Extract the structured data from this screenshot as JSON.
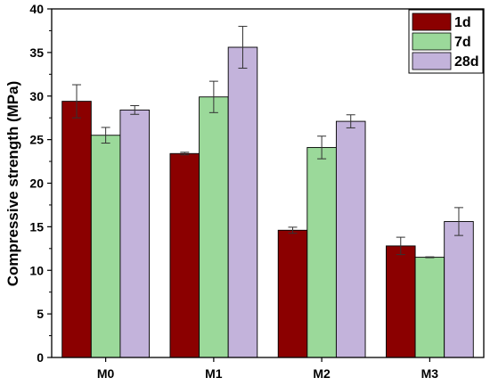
{
  "chart_data": {
    "type": "bar",
    "categories": [
      "M0",
      "M1",
      "M2",
      "M3"
    ],
    "series": [
      {
        "name": "1d",
        "color": "#8b0000",
        "values": [
          29.4,
          23.4,
          14.6,
          12.8
        ],
        "errors": [
          1.9,
          0.15,
          0.35,
          1.0
        ]
      },
      {
        "name": "7d",
        "color": "#9bd99a",
        "values": [
          25.5,
          29.9,
          24.1,
          11.5
        ],
        "errors": [
          0.9,
          1.8,
          1.3,
          0.05
        ]
      },
      {
        "name": "28d",
        "color": "#c3b3db",
        "values": [
          28.4,
          35.6,
          27.1,
          15.6
        ],
        "errors": [
          0.5,
          2.4,
          0.75,
          1.6
        ]
      }
    ],
    "ylabel": "Compressive strength (MPa)",
    "xlabel": "",
    "ylim": [
      0,
      40
    ],
    "yticks": [
      "0",
      "5",
      "10",
      "15",
      "20",
      "25",
      "30",
      "35",
      "40"
    ],
    "legend_position": "top-right",
    "grid": false
  }
}
